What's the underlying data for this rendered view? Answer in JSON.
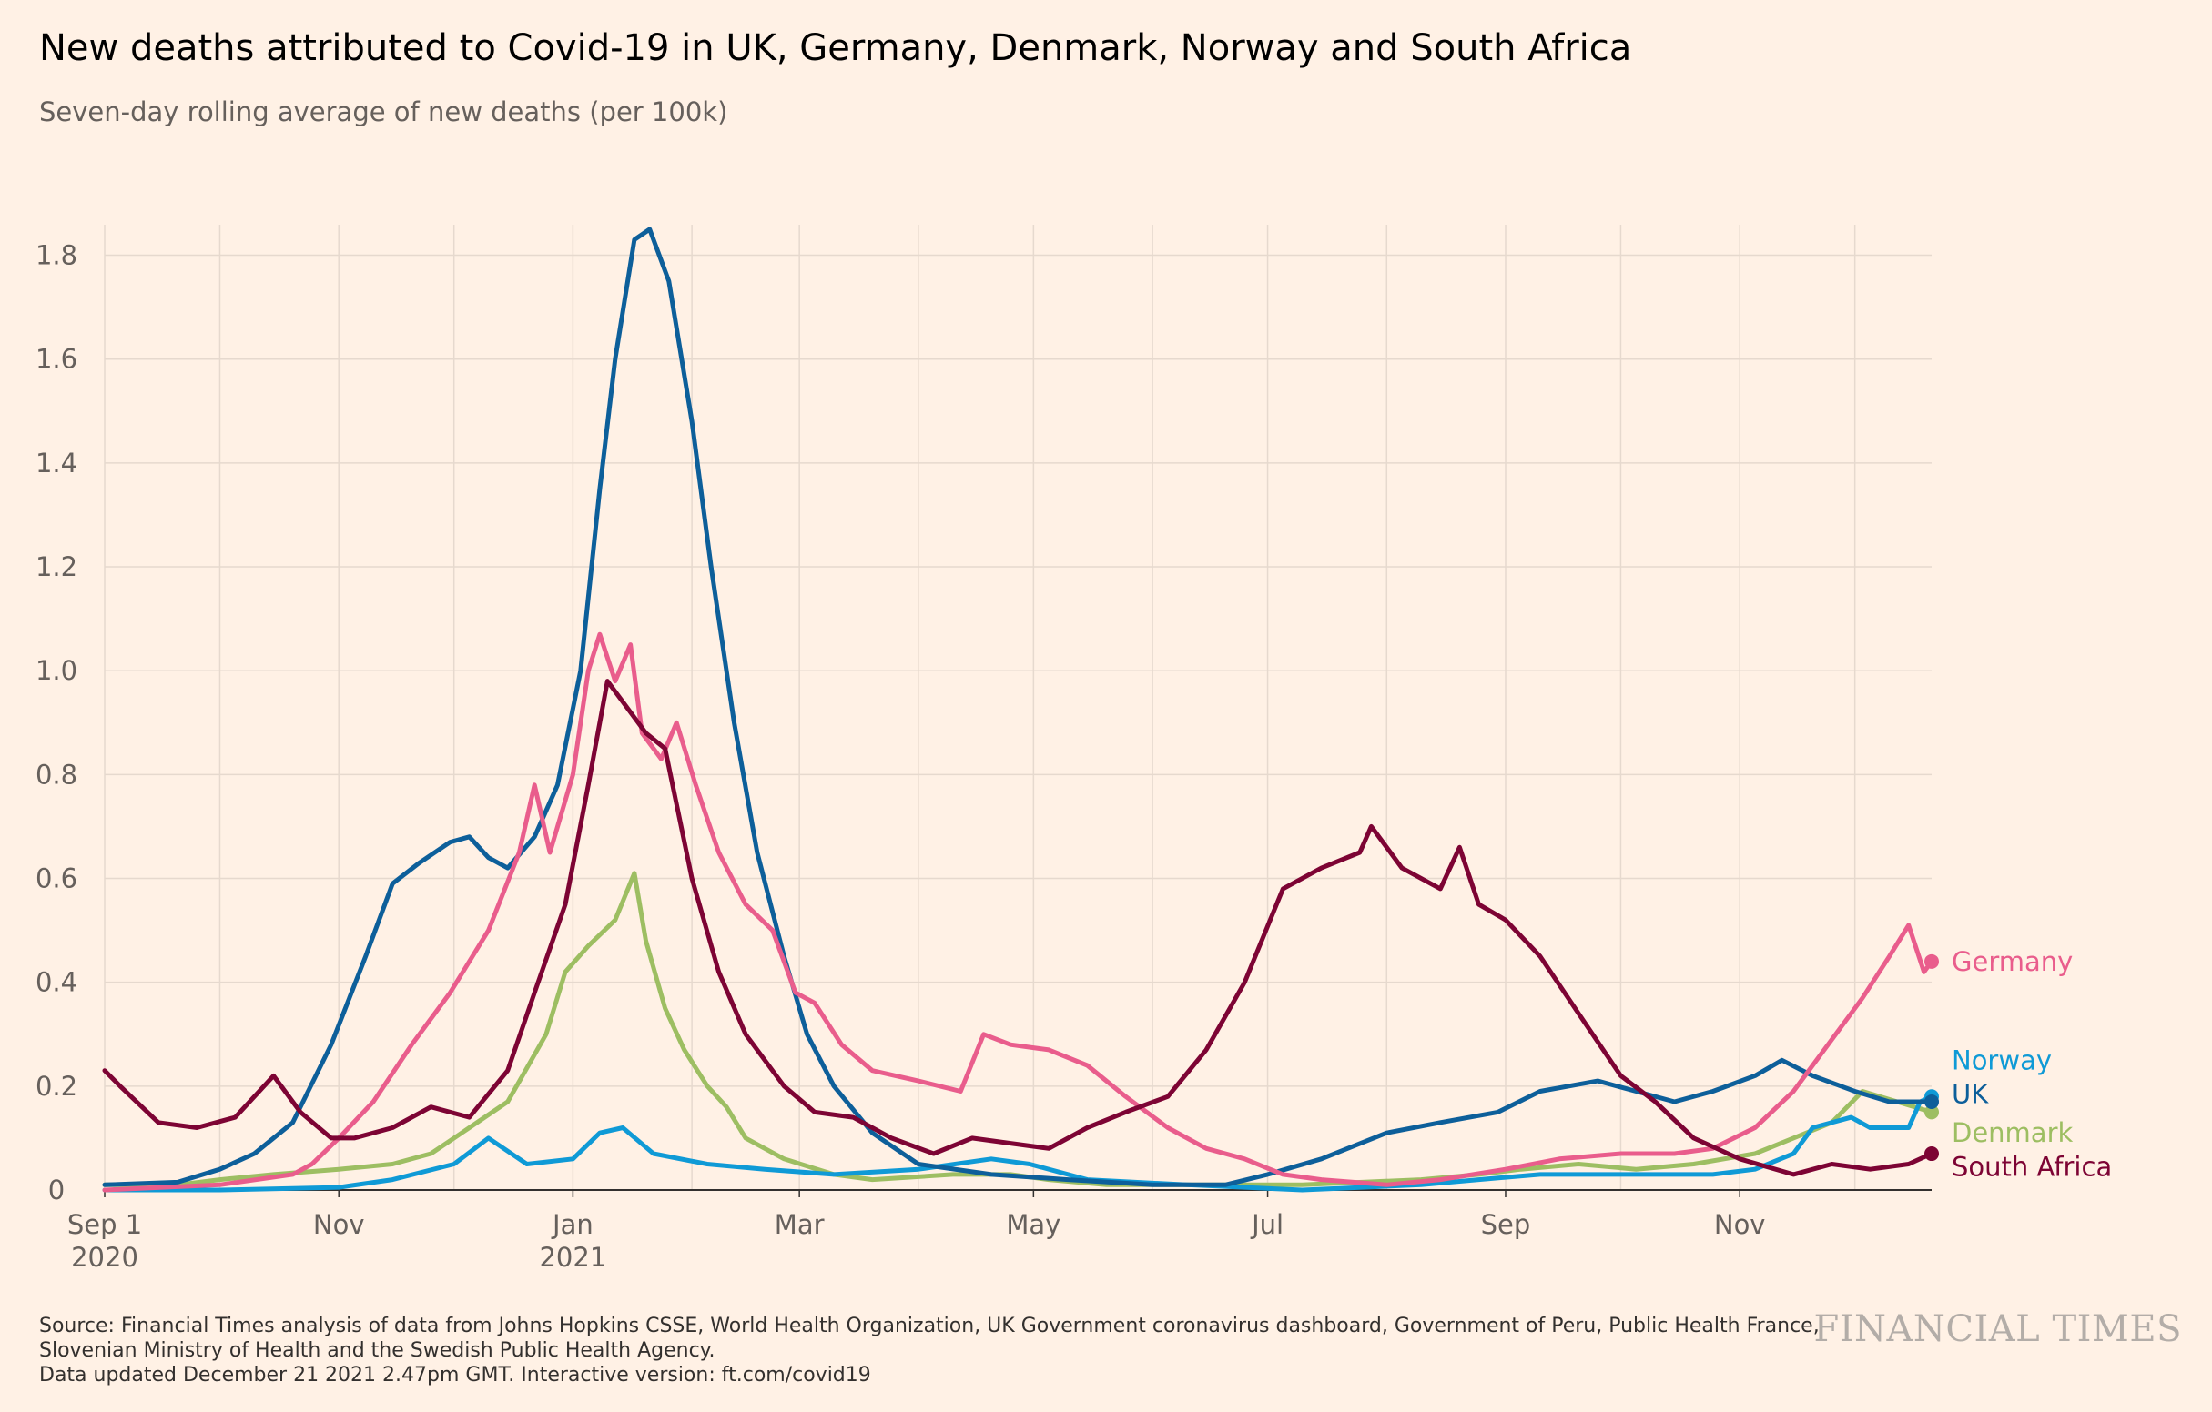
{
  "title": "New deaths attributed to Covid-19 in UK, Germany, Denmark, Norway and South Africa",
  "subtitle": "Seven-day rolling average of new deaths (per 100k)",
  "footer": {
    "source_line1": "Source: Financial Times analysis of data from Johns Hopkins CSSE, World Health Organization, UK Government coronavirus dashboard, Government of Peru, Public Health France,",
    "source_line2": "Slovenian Ministry of Health and the Swedish Public Health Agency.",
    "updated": "Data updated December 21 2021 2.47pm GMT. Interactive version: ft.com/covid19"
  },
  "logo": "FINANCIAL TIMES",
  "chart_data": {
    "type": "line",
    "x_range": [
      "2020-09-01",
      "2021-12-21"
    ],
    "ylim": [
      0,
      1.85
    ],
    "y_ticks": [
      0,
      0.2,
      0.4,
      0.6,
      0.8,
      1.0,
      1.2,
      1.4,
      1.6,
      1.8
    ],
    "y_tick_labels": [
      "0",
      "0.2",
      "0.4",
      "0.6",
      "0.8",
      "1.0",
      "1.2",
      "1.4",
      "1.6",
      "1.8"
    ],
    "x_ticks": [
      {
        "date": "2020-09-01",
        "label": "Sep 1",
        "sublabel": "2020"
      },
      {
        "date": "2020-11-01",
        "label": "Nov",
        "sublabel": ""
      },
      {
        "date": "2021-01-01",
        "label": "Jan",
        "sublabel": "2021"
      },
      {
        "date": "2021-03-01",
        "label": "Mar",
        "sublabel": ""
      },
      {
        "date": "2021-05-01",
        "label": "May",
        "sublabel": ""
      },
      {
        "date": "2021-07-01",
        "label": "Jul",
        "sublabel": ""
      },
      {
        "date": "2021-09-01",
        "label": "Sep",
        "sublabel": ""
      },
      {
        "date": "2021-11-01",
        "label": "Nov",
        "sublabel": ""
      }
    ],
    "grid": true,
    "legend": "end-labels",
    "series": [
      {
        "name": "Denmark",
        "color": "#9DBE62",
        "points": [
          [
            "2020-09-01",
            0.01
          ],
          [
            "2020-09-20",
            0.01
          ],
          [
            "2020-10-01",
            0.02
          ],
          [
            "2020-10-15",
            0.03
          ],
          [
            "2020-11-01",
            0.04
          ],
          [
            "2020-11-15",
            0.05
          ],
          [
            "2020-11-25",
            0.07
          ],
          [
            "2020-12-05",
            0.12
          ],
          [
            "2020-12-15",
            0.17
          ],
          [
            "2020-12-25",
            0.3
          ],
          [
            "2020-12-30",
            0.42
          ],
          [
            "2021-01-05",
            0.47
          ],
          [
            "2021-01-12",
            0.52
          ],
          [
            "2021-01-17",
            0.61
          ],
          [
            "2021-01-20",
            0.48
          ],
          [
            "2021-01-25",
            0.35
          ],
          [
            "2021-01-30",
            0.27
          ],
          [
            "2021-02-05",
            0.2
          ],
          [
            "2021-02-10",
            0.16
          ],
          [
            "2021-02-15",
            0.1
          ],
          [
            "2021-02-25",
            0.06
          ],
          [
            "2021-03-10",
            0.03
          ],
          [
            "2021-03-20",
            0.02
          ],
          [
            "2021-04-10",
            0.03
          ],
          [
            "2021-04-25",
            0.03
          ],
          [
            "2021-05-05",
            0.02
          ],
          [
            "2021-05-20",
            0.01
          ],
          [
            "2021-06-05",
            0.01
          ],
          [
            "2021-06-20",
            0.01
          ],
          [
            "2021-07-10",
            0.01
          ],
          [
            "2021-08-10",
            0.02
          ],
          [
            "2021-08-25",
            0.03
          ],
          [
            "2021-09-05",
            0.04
          ],
          [
            "2021-09-20",
            0.05
          ],
          [
            "2021-10-05",
            0.04
          ],
          [
            "2021-10-20",
            0.05
          ],
          [
            "2021-11-05",
            0.07
          ],
          [
            "2021-11-15",
            0.1
          ],
          [
            "2021-11-25",
            0.13
          ],
          [
            "2021-12-03",
            0.19
          ],
          [
            "2021-12-12",
            0.17
          ],
          [
            "2021-12-21",
            0.15
          ]
        ]
      },
      {
        "name": "Norway",
        "color": "#0F9AD6",
        "points": [
          [
            "2020-09-01",
            0.0
          ],
          [
            "2020-10-01",
            0.0
          ],
          [
            "2020-11-01",
            0.005
          ],
          [
            "2020-11-15",
            0.02
          ],
          [
            "2020-12-01",
            0.05
          ],
          [
            "2020-12-10",
            0.1
          ],
          [
            "2020-12-20",
            0.05
          ],
          [
            "2021-01-01",
            0.06
          ],
          [
            "2021-01-08",
            0.11
          ],
          [
            "2021-01-14",
            0.12
          ],
          [
            "2021-01-22",
            0.07
          ],
          [
            "2021-02-05",
            0.05
          ],
          [
            "2021-02-20",
            0.04
          ],
          [
            "2021-03-10",
            0.03
          ],
          [
            "2021-04-01",
            0.04
          ],
          [
            "2021-04-20",
            0.06
          ],
          [
            "2021-04-30",
            0.05
          ],
          [
            "2021-05-15",
            0.02
          ],
          [
            "2021-06-10",
            0.01
          ],
          [
            "2021-07-10",
            0.0
          ],
          [
            "2021-08-10",
            0.01
          ],
          [
            "2021-08-25",
            0.02
          ],
          [
            "2021-09-10",
            0.03
          ],
          [
            "2021-10-10",
            0.03
          ],
          [
            "2021-10-25",
            0.03
          ],
          [
            "2021-11-05",
            0.04
          ],
          [
            "2021-11-15",
            0.07
          ],
          [
            "2021-11-20",
            0.12
          ],
          [
            "2021-11-30",
            0.14
          ],
          [
            "2021-12-05",
            0.12
          ],
          [
            "2021-12-15",
            0.12
          ],
          [
            "2021-12-18",
            0.17
          ],
          [
            "2021-12-21",
            0.18
          ]
        ]
      },
      {
        "name": "UK",
        "color": "#0D5F9A",
        "points": [
          [
            "2020-09-01",
            0.01
          ],
          [
            "2020-09-20",
            0.015
          ],
          [
            "2020-10-01",
            0.04
          ],
          [
            "2020-10-10",
            0.07
          ],
          [
            "2020-10-20",
            0.13
          ],
          [
            "2020-10-30",
            0.28
          ],
          [
            "2020-11-08",
            0.45
          ],
          [
            "2020-11-15",
            0.59
          ],
          [
            "2020-11-22",
            0.63
          ],
          [
            "2020-11-30",
            0.67
          ],
          [
            "2020-12-05",
            0.68
          ],
          [
            "2020-12-10",
            0.64
          ],
          [
            "2020-12-15",
            0.62
          ],
          [
            "2020-12-22",
            0.68
          ],
          [
            "2020-12-28",
            0.78
          ],
          [
            "2021-01-03",
            1.0
          ],
          [
            "2021-01-08",
            1.35
          ],
          [
            "2021-01-12",
            1.6
          ],
          [
            "2021-01-17",
            1.83
          ],
          [
            "2021-01-21",
            1.85
          ],
          [
            "2021-01-26",
            1.75
          ],
          [
            "2021-02-01",
            1.48
          ],
          [
            "2021-02-06",
            1.2
          ],
          [
            "2021-02-12",
            0.9
          ],
          [
            "2021-02-18",
            0.65
          ],
          [
            "2021-02-25",
            0.45
          ],
          [
            "2021-03-03",
            0.3
          ],
          [
            "2021-03-10",
            0.2
          ],
          [
            "2021-03-20",
            0.11
          ],
          [
            "2021-04-01",
            0.05
          ],
          [
            "2021-04-20",
            0.03
          ],
          [
            "2021-05-10",
            0.02
          ],
          [
            "2021-06-01",
            0.01
          ],
          [
            "2021-06-20",
            0.01
          ],
          [
            "2021-07-01",
            0.03
          ],
          [
            "2021-07-15",
            0.06
          ],
          [
            "2021-08-01",
            0.11
          ],
          [
            "2021-08-15",
            0.13
          ],
          [
            "2021-08-30",
            0.15
          ],
          [
            "2021-09-10",
            0.19
          ],
          [
            "2021-09-25",
            0.21
          ],
          [
            "2021-10-05",
            0.19
          ],
          [
            "2021-10-15",
            0.17
          ],
          [
            "2021-10-25",
            0.19
          ],
          [
            "2021-11-05",
            0.22
          ],
          [
            "2021-11-12",
            0.25
          ],
          [
            "2021-11-20",
            0.22
          ],
          [
            "2021-12-01",
            0.19
          ],
          [
            "2021-12-10",
            0.17
          ],
          [
            "2021-12-21",
            0.17
          ]
        ]
      },
      {
        "name": "Germany",
        "color": "#E95D8C",
        "points": [
          [
            "2020-09-01",
            0.0
          ],
          [
            "2020-10-01",
            0.01
          ],
          [
            "2020-10-20",
            0.03
          ],
          [
            "2020-10-25",
            0.05
          ],
          [
            "2020-11-01",
            0.1
          ],
          [
            "2020-11-10",
            0.17
          ],
          [
            "2020-11-20",
            0.28
          ],
          [
            "2020-11-30",
            0.38
          ],
          [
            "2020-12-10",
            0.5
          ],
          [
            "2020-12-18",
            0.65
          ],
          [
            "2020-12-22",
            0.78
          ],
          [
            "2020-12-26",
            0.65
          ],
          [
            "2021-01-01",
            0.8
          ],
          [
            "2021-01-05",
            1.0
          ],
          [
            "2021-01-08",
            1.07
          ],
          [
            "2021-01-12",
            0.98
          ],
          [
            "2021-01-16",
            1.05
          ],
          [
            "2021-01-19",
            0.88
          ],
          [
            "2021-01-24",
            0.83
          ],
          [
            "2021-01-28",
            0.9
          ],
          [
            "2021-02-02",
            0.78
          ],
          [
            "2021-02-08",
            0.65
          ],
          [
            "2021-02-15",
            0.55
          ],
          [
            "2021-02-22",
            0.5
          ],
          [
            "2021-02-28",
            0.38
          ],
          [
            "2021-03-05",
            0.36
          ],
          [
            "2021-03-12",
            0.28
          ],
          [
            "2021-03-20",
            0.23
          ],
          [
            "2021-04-01",
            0.21
          ],
          [
            "2021-04-12",
            0.19
          ],
          [
            "2021-04-18",
            0.3
          ],
          [
            "2021-04-25",
            0.28
          ],
          [
            "2021-05-05",
            0.27
          ],
          [
            "2021-05-15",
            0.24
          ],
          [
            "2021-05-25",
            0.18
          ],
          [
            "2021-06-05",
            0.12
          ],
          [
            "2021-06-15",
            0.08
          ],
          [
            "2021-06-25",
            0.06
          ],
          [
            "2021-07-05",
            0.03
          ],
          [
            "2021-07-15",
            0.02
          ],
          [
            "2021-08-01",
            0.01
          ],
          [
            "2021-08-15",
            0.02
          ],
          [
            "2021-09-01",
            0.04
          ],
          [
            "2021-09-15",
            0.06
          ],
          [
            "2021-10-01",
            0.07
          ],
          [
            "2021-10-15",
            0.07
          ],
          [
            "2021-10-25",
            0.08
          ],
          [
            "2021-11-05",
            0.12
          ],
          [
            "2021-11-15",
            0.19
          ],
          [
            "2021-11-25",
            0.29
          ],
          [
            "2021-12-03",
            0.37
          ],
          [
            "2021-12-10",
            0.45
          ],
          [
            "2021-12-15",
            0.51
          ],
          [
            "2021-12-19",
            0.42
          ],
          [
            "2021-12-21",
            0.44
          ]
        ]
      },
      {
        "name": "South Africa",
        "color": "#7D0434",
        "points": [
          [
            "2020-09-01",
            0.23
          ],
          [
            "2020-09-05",
            0.2
          ],
          [
            "2020-09-15",
            0.13
          ],
          [
            "2020-09-25",
            0.12
          ],
          [
            "2020-10-05",
            0.14
          ],
          [
            "2020-10-10",
            0.18
          ],
          [
            "2020-10-15",
            0.22
          ],
          [
            "2020-10-22",
            0.15
          ],
          [
            "2020-10-30",
            0.1
          ],
          [
            "2020-11-05",
            0.1
          ],
          [
            "2020-11-15",
            0.12
          ],
          [
            "2020-11-25",
            0.16
          ],
          [
            "2020-12-05",
            0.14
          ],
          [
            "2020-12-15",
            0.23
          ],
          [
            "2020-12-22",
            0.38
          ],
          [
            "2020-12-30",
            0.55
          ],
          [
            "2021-01-05",
            0.78
          ],
          [
            "2021-01-10",
            0.98
          ],
          [
            "2021-01-15",
            0.93
          ],
          [
            "2021-01-20",
            0.88
          ],
          [
            "2021-01-25",
            0.85
          ],
          [
            "2021-02-01",
            0.6
          ],
          [
            "2021-02-08",
            0.42
          ],
          [
            "2021-02-15",
            0.3
          ],
          [
            "2021-02-25",
            0.2
          ],
          [
            "2021-03-05",
            0.15
          ],
          [
            "2021-03-15",
            0.14
          ],
          [
            "2021-03-25",
            0.1
          ],
          [
            "2021-04-05",
            0.07
          ],
          [
            "2021-04-15",
            0.1
          ],
          [
            "2021-04-25",
            0.09
          ],
          [
            "2021-05-05",
            0.08
          ],
          [
            "2021-05-15",
            0.12
          ],
          [
            "2021-05-25",
            0.15
          ],
          [
            "2021-06-05",
            0.18
          ],
          [
            "2021-06-15",
            0.27
          ],
          [
            "2021-06-25",
            0.4
          ],
          [
            "2021-07-05",
            0.58
          ],
          [
            "2021-07-15",
            0.62
          ],
          [
            "2021-07-25",
            0.65
          ],
          [
            "2021-07-28",
            0.7
          ],
          [
            "2021-08-05",
            0.62
          ],
          [
            "2021-08-15",
            0.58
          ],
          [
            "2021-08-20",
            0.66
          ],
          [
            "2021-08-25",
            0.55
          ],
          [
            "2021-09-01",
            0.52
          ],
          [
            "2021-09-10",
            0.45
          ],
          [
            "2021-09-20",
            0.34
          ],
          [
            "2021-10-01",
            0.22
          ],
          [
            "2021-10-10",
            0.17
          ],
          [
            "2021-10-20",
            0.1
          ],
          [
            "2021-11-01",
            0.06
          ],
          [
            "2021-11-15",
            0.03
          ],
          [
            "2021-11-25",
            0.05
          ],
          [
            "2021-12-05",
            0.04
          ],
          [
            "2021-12-15",
            0.05
          ],
          [
            "2021-12-21",
            0.07
          ]
        ]
      }
    ],
    "end_labels": [
      {
        "series": "Germany",
        "text": "Germany",
        "color": "#E95D8C",
        "value": 0.44
      },
      {
        "series": "Norway",
        "text": "Norway",
        "color": "#0F9AD6",
        "value": 0.25
      },
      {
        "series": "UK",
        "text": "UK",
        "color": "#0D5F9A",
        "value": 0.185
      },
      {
        "series": "Denmark",
        "text": "Denmark",
        "color": "#9DBE62",
        "value": 0.11
      },
      {
        "series": "South Africa",
        "text": "South Africa",
        "color": "#7D0434",
        "value": 0.045
      }
    ]
  }
}
